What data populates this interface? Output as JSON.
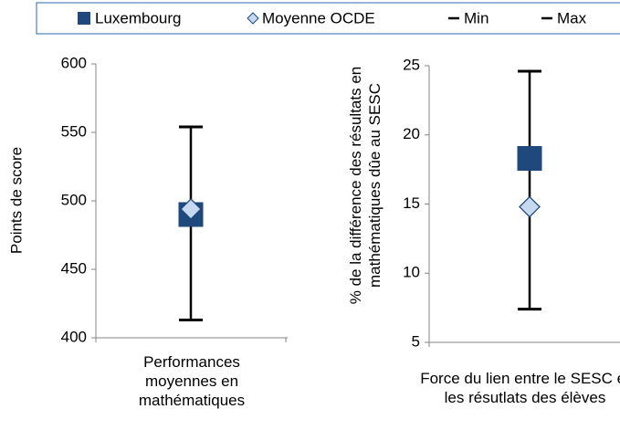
{
  "chart_data": [
    {
      "type": "range",
      "y_label": "Points de score",
      "categories": [
        "Performances moyennes en mathématiques"
      ],
      "ylim": [
        400,
        600
      ],
      "yticks": [
        400,
        450,
        500,
        550,
        600
      ],
      "series": [
        {
          "name": "Luxembourg",
          "color": "#1f497d",
          "marker": "square",
          "values": [
            490
          ]
        },
        {
          "name": "Moyenne OCDE",
          "color": "#c6d9f1",
          "marker": "diamond",
          "values": [
            494
          ]
        },
        {
          "name": "Min",
          "color": "#000000",
          "marker": "dash",
          "values": [
            413
          ]
        },
        {
          "name": "Max",
          "color": "#000000",
          "marker": "dash",
          "values": [
            554
          ]
        }
      ]
    },
    {
      "type": "range",
      "y_label": "% de la différence des résultats en mathématiques dûe au SESC",
      "categories": [
        "Force du lien entre le SESC et les résutlats des élèves"
      ],
      "ylim": [
        5,
        25
      ],
      "yticks": [
        5,
        10,
        15,
        20,
        25
      ],
      "series": [
        {
          "color": "#1f497d",
          "marker": "square",
          "values": [
            18.3
          ]
        },
        {
          "color": "#c6d9f1",
          "marker": "diamond",
          "values": [
            14.8
          ]
        },
        {
          "color": "#000000",
          "marker": "dash",
          "values": [
            7.4
          ]
        },
        {
          "color": "#000000",
          "marker": "dash",
          "values": [
            24.6
          ]
        }
      ]
    }
  ]
}
